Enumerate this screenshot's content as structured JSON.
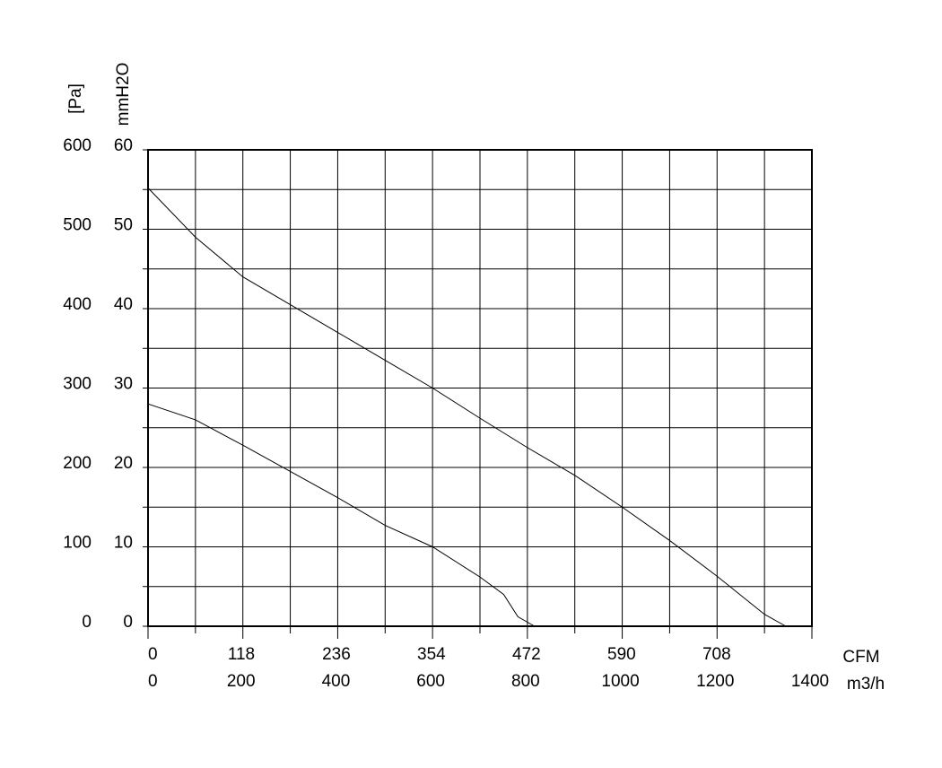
{
  "chart_data": {
    "type": "line",
    "y_label": "[Pa]",
    "y2_label": "mmH2O",
    "x_label": "m3/h",
    "x2_label": "CFM",
    "series": [
      {
        "color": "#000000",
        "x": [
          0,
          100,
          200,
          300,
          400,
          500,
          600,
          700,
          800,
          900,
          1000,
          1100,
          1200,
          1300,
          1345
        ],
        "values": [
          552,
          490,
          440,
          405,
          370,
          335,
          300,
          262,
          225,
          190,
          150,
          108,
          63,
          15,
          0
        ]
      },
      {
        "color": "#000000",
        "x": [
          0,
          100,
          200,
          300,
          400,
          500,
          600,
          700,
          750,
          780,
          815
        ],
        "values": [
          280,
          260,
          228,
          195,
          162,
          127,
          100,
          62,
          40,
          12,
          0
        ]
      }
    ],
    "xlim": [
      0,
      1400
    ],
    "xticks": [
      0,
      200,
      400,
      600,
      800,
      1000,
      1200,
      1400
    ],
    "minor_xticks": [
      100,
      300,
      500,
      700,
      900,
      1100,
      1300
    ],
    "x2lim": [
      0,
      824
    ],
    "x2ticks": [
      0,
      118,
      236,
      354,
      472,
      590,
      708
    ],
    "ylim": [
      0,
      600
    ],
    "yticks": [
      0,
      100,
      200,
      300,
      400,
      500,
      600
    ],
    "minor_yticks": [
      50,
      150,
      250,
      350,
      450,
      550
    ],
    "y2lim": [
      0,
      60
    ],
    "y2ticks": [
      0,
      10,
      20,
      30,
      40,
      50,
      60
    ],
    "grid": true
  }
}
